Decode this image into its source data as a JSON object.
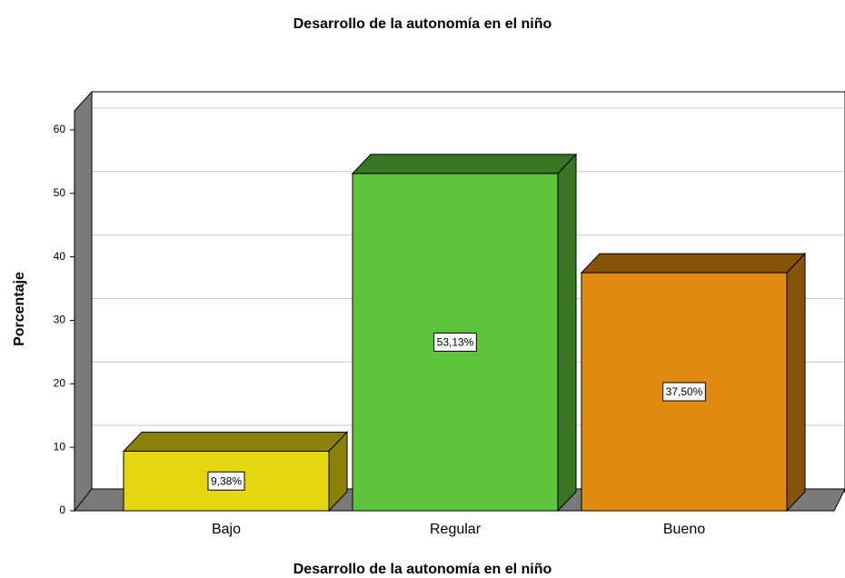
{
  "chart_data": {
    "type": "bar3d",
    "title": "Desarrollo de la autonomía en el niño",
    "x_label": "Desarrollo de la autonomía en el niño",
    "y_label": "Porcentaje",
    "categories": [
      "Bajo",
      "Regular",
      "Bueno"
    ],
    "values": [
      9.38,
      53.13,
      37.5
    ],
    "value_labels": [
      "9,38%",
      "53,13%",
      "37,50%"
    ],
    "colors": [
      "#e5d70f",
      "#5ec43b",
      "#e08a10"
    ],
    "ylim": [
      0,
      63
    ],
    "yticks": [
      0,
      10,
      20,
      30,
      40,
      50,
      60
    ],
    "grid": true
  }
}
